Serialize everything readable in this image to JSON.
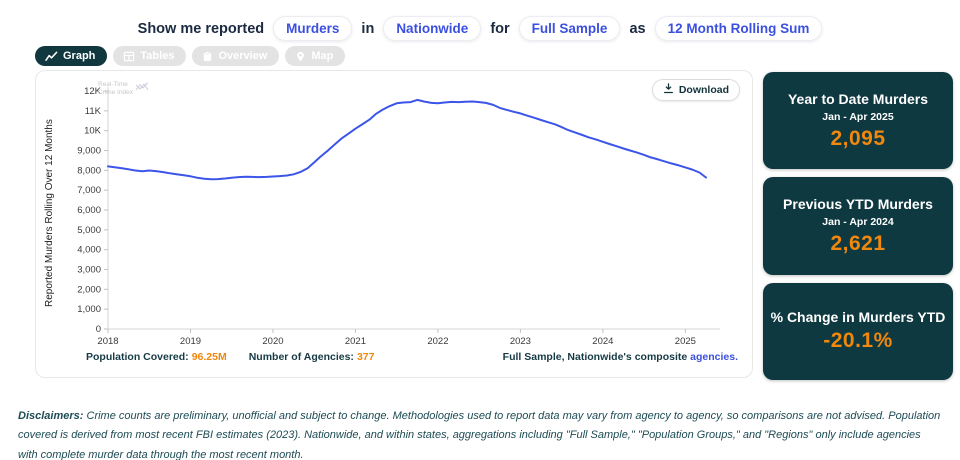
{
  "colors": {
    "teal_dark": "#0e3940",
    "accent_orange": "#f0870e",
    "link_blue": "#3b50e0",
    "line_blue": "#3b55e8"
  },
  "query": {
    "lead": "Show me reported",
    "metric": "Murders",
    "conn_in": "in",
    "geography": "Nationwide",
    "conn_for": "for",
    "sample": "Full Sample",
    "conn_as": "as",
    "aggregation": "12 Month Rolling Sum"
  },
  "tabs": [
    {
      "label": "Graph",
      "icon": "line-chart-icon",
      "active": true
    },
    {
      "label": "Tables",
      "icon": "table-icon",
      "active": false
    },
    {
      "label": "Overview",
      "icon": "clipboard-icon",
      "active": false
    },
    {
      "label": "Map",
      "icon": "map-pin-icon",
      "active": false
    }
  ],
  "chart_panel": {
    "download_label": "Download",
    "watermark": {
      "line1": "Real-Time",
      "line2": "Crime Index"
    },
    "footer": {
      "population_label": "Population Covered:",
      "population_value": "96.25M",
      "agencies_label": "Number of Agencies:",
      "agencies_value": "377",
      "composite_text": "Full Sample, Nationwide's composite",
      "composite_link": "agencies."
    }
  },
  "chart_data": {
    "type": "line",
    "title": "",
    "xlabel": "",
    "ylabel": "Reported Murders Rolling Over 12 Months",
    "xlim": [
      2018,
      2025.42
    ],
    "ylim": [
      0,
      12000
    ],
    "grid": false,
    "legend": "none",
    "line_color": "#3b55e8",
    "x_ticks": [
      2018,
      2019,
      2020,
      2021,
      2022,
      2023,
      2024,
      2025
    ],
    "y_ticks": [
      {
        "value": 0,
        "label": "0"
      },
      {
        "value": 1000,
        "label": "1,000"
      },
      {
        "value": 2000,
        "label": "2,000"
      },
      {
        "value": 3000,
        "label": "3,000"
      },
      {
        "value": 4000,
        "label": "4,000"
      },
      {
        "value": 5000,
        "label": "5,000"
      },
      {
        "value": 6000,
        "label": "6,000"
      },
      {
        "value": 7000,
        "label": "7,000"
      },
      {
        "value": 8000,
        "label": "8,000"
      },
      {
        "value": 9000,
        "label": "9,000"
      },
      {
        "value": 10000,
        "label": "10K"
      },
      {
        "value": 11000,
        "label": "11K"
      },
      {
        "value": 12000,
        "label": "12K"
      }
    ],
    "series": [
      {
        "name": "Reported Murders 12-Month Rolling Sum",
        "x_unit": "decimal year, monthly Jan 2018 - Apr 2025",
        "x": [
          2018.0,
          2018.08,
          2018.17,
          2018.25,
          2018.33,
          2018.42,
          2018.5,
          2018.58,
          2018.67,
          2018.75,
          2018.83,
          2018.92,
          2019.0,
          2019.08,
          2019.17,
          2019.25,
          2019.33,
          2019.42,
          2019.5,
          2019.58,
          2019.67,
          2019.75,
          2019.83,
          2019.92,
          2020.0,
          2020.08,
          2020.17,
          2020.25,
          2020.33,
          2020.42,
          2020.5,
          2020.58,
          2020.67,
          2020.75,
          2020.83,
          2020.92,
          2021.0,
          2021.08,
          2021.17,
          2021.25,
          2021.33,
          2021.42,
          2021.5,
          2021.58,
          2021.67,
          2021.75,
          2021.83,
          2021.92,
          2022.0,
          2022.08,
          2022.17,
          2022.25,
          2022.33,
          2022.42,
          2022.5,
          2022.58,
          2022.67,
          2022.75,
          2022.83,
          2022.92,
          2023.0,
          2023.08,
          2023.17,
          2023.25,
          2023.33,
          2023.42,
          2023.5,
          2023.58,
          2023.67,
          2023.75,
          2023.83,
          2023.92,
          2024.0,
          2024.08,
          2024.17,
          2024.25,
          2024.33,
          2024.42,
          2024.5,
          2024.58,
          2024.67,
          2024.75,
          2024.83,
          2024.92,
          2025.0,
          2025.08,
          2025.17,
          2025.25
        ],
        "y": [
          8200,
          8160,
          8100,
          8050,
          7990,
          7950,
          7990,
          7960,
          7910,
          7850,
          7800,
          7750,
          7700,
          7630,
          7580,
          7550,
          7560,
          7590,
          7630,
          7660,
          7680,
          7670,
          7660,
          7670,
          7690,
          7710,
          7740,
          7800,
          7910,
          8110,
          8400,
          8700,
          9010,
          9310,
          9600,
          9860,
          10100,
          10310,
          10560,
          10850,
          11060,
          11250,
          11380,
          11420,
          11440,
          11550,
          11470,
          11400,
          11380,
          11420,
          11450,
          11440,
          11460,
          11470,
          11440,
          11400,
          11300,
          11150,
          11050,
          10950,
          10870,
          10760,
          10650,
          10540,
          10430,
          10320,
          10180,
          10030,
          9900,
          9780,
          9660,
          9550,
          9440,
          9330,
          9210,
          9100,
          9000,
          8890,
          8780,
          8650,
          8550,
          8450,
          8350,
          8250,
          8150,
          8040,
          7890,
          7640
        ]
      }
    ]
  },
  "stat_cards": [
    {
      "title": "Year to Date Murders",
      "subtitle": "Jan - Apr 2025",
      "value": "2,095"
    },
    {
      "title": "Previous YTD Murders",
      "subtitle": "Jan - Apr 2024",
      "value": "2,621"
    },
    {
      "title": "% Change in Murders YTD",
      "subtitle": "",
      "value": "-20.1%"
    }
  ],
  "disclaimer": {
    "label": "Disclaimers:",
    "text": " Crime counts are preliminary, unofficial and subject to change. Methodologies used to report data may vary from agency to agency, so comparisons are not advised. Population covered is derived from most recent FBI estimates (2023). Nationwide, and within states, aggregations including \"Full Sample,\" \"Population Groups,\" and \"Regions\" only include agencies with complete murder data through the most recent month."
  }
}
